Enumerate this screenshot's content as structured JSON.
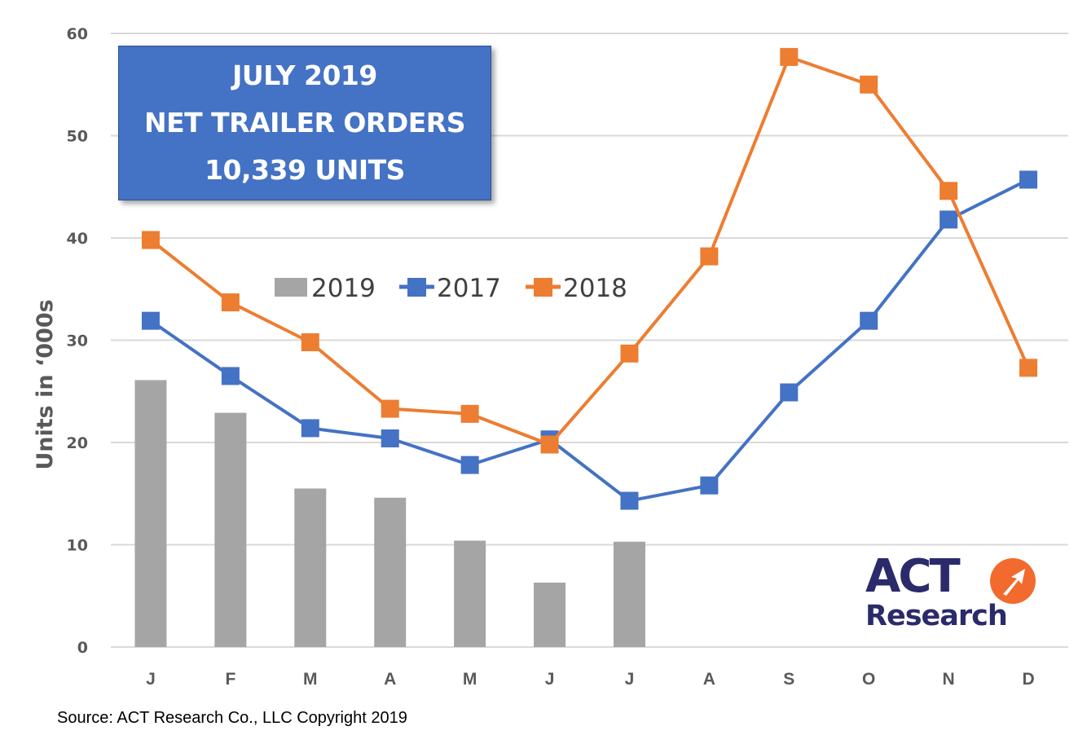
{
  "title_box": {
    "line1": "JULY 2019",
    "line2": "NET TRAILER ORDERS",
    "line3": "10,339 UNITS"
  },
  "legend": {
    "items": [
      {
        "label": "2019",
        "type": "bar",
        "color": "#a5a5a5"
      },
      {
        "label": "2017",
        "type": "line-square",
        "color": "#4472c4"
      },
      {
        "label": "2018",
        "type": "line-square",
        "color": "#ed7d31"
      }
    ]
  },
  "axes": {
    "ylabel": "Units in ‘000s",
    "yticks": [
      "0",
      "10",
      "20",
      "30",
      "40",
      "50",
      "60"
    ],
    "xticks": [
      "J",
      "F",
      "M",
      "A",
      "M",
      "J",
      "J",
      "A",
      "S",
      "O",
      "N",
      "D"
    ]
  },
  "source": "Source: ACT Research Co., LLC  Copyright 2019",
  "logo": {
    "line1": "ACT",
    "line2": "Research",
    "navy": "#2b2a6b",
    "orange": "#f26a2e"
  },
  "chart_data": {
    "type": "bar+line",
    "title": "JULY 2019 NET TRAILER ORDERS 10,339 UNITS",
    "xlabel": "",
    "ylabel": "Units in ‘000s",
    "ylim": [
      0,
      60
    ],
    "yticks": [
      0,
      10,
      20,
      30,
      40,
      50,
      60
    ],
    "grid": true,
    "legend_position": "inside-center-left",
    "categories": [
      "J",
      "F",
      "M",
      "A",
      "M",
      "J",
      "J",
      "A",
      "S",
      "O",
      "N",
      "D"
    ],
    "series": [
      {
        "name": "2019",
        "type": "bar",
        "color": "#a5a5a5",
        "values": [
          26.1,
          22.9,
          15.5,
          14.6,
          10.4,
          6.3,
          10.3,
          null,
          null,
          null,
          null,
          null
        ]
      },
      {
        "name": "2017",
        "type": "line",
        "marker": "square",
        "color": "#4472c4",
        "values": [
          31.9,
          26.5,
          21.4,
          20.4,
          17.8,
          20.3,
          14.3,
          15.8,
          24.9,
          31.9,
          41.8,
          45.7
        ]
      },
      {
        "name": "2018",
        "type": "line",
        "marker": "square",
        "color": "#ed7d31",
        "values": [
          39.8,
          33.7,
          29.8,
          23.3,
          22.8,
          19.8,
          28.7,
          38.2,
          57.7,
          55.0,
          44.6,
          27.3
        ]
      }
    ],
    "annotations": [
      "JULY 2019 NET TRAILER ORDERS 10,339 UNITS",
      "Source: ACT Research Co., LLC  Copyright 2019"
    ]
  }
}
